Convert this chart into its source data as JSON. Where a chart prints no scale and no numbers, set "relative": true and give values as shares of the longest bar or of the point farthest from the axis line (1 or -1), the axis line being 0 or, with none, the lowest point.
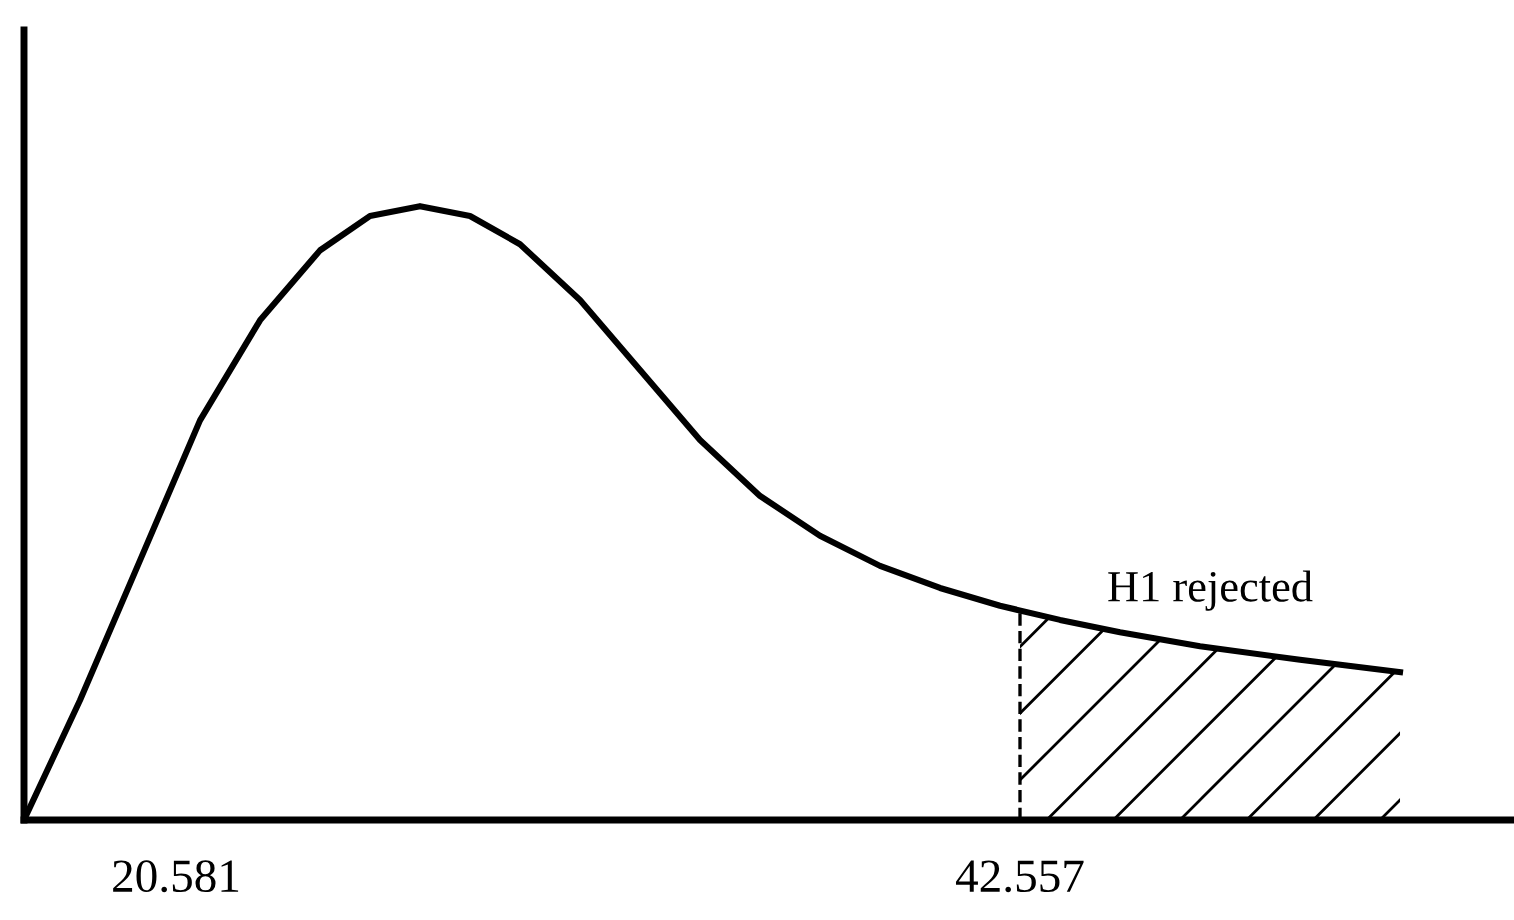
{
  "chart_data": {
    "type": "line",
    "relative": true,
    "x": [
      16.623,
      18.081,
      19.644,
      21.206,
      22.768,
      24.33,
      25.632,
      26.934,
      28.236,
      29.538,
      31.1,
      32.663,
      34.225,
      35.787,
      37.349,
      38.912,
      40.474,
      42.036,
      43.599,
      45.161,
      47.244,
      49.848,
      52.452
    ],
    "series": [
      {
        "color": "#000000",
        "values": [
          0,
          0.195,
          0.423,
          0.651,
          0.814,
          0.928,
          0.984,
          1,
          0.984,
          0.938,
          0.847,
          0.733,
          0.619,
          0.528,
          0.463,
          0.414,
          0.378,
          0.349,
          0.326,
          0.306,
          0.283,
          0.261,
          0.241
        ]
      }
    ],
    "xlim": [
      16.623,
      55.42
    ],
    "xticks": [
      20.581,
      42.557
    ],
    "ref_lines": [
      {
        "axis": "x",
        "value": 42.557,
        "line_style": "dashed",
        "color": "#000000"
      }
    ],
    "bands": [
      {
        "axis": "x",
        "from": 42.557,
        "to": 52.452,
        "label": "H1 rejected",
        "color": "#000000"
      }
    ],
    "grid": false,
    "legend": false,
    "marker": "none",
    "line_style": "solid"
  }
}
